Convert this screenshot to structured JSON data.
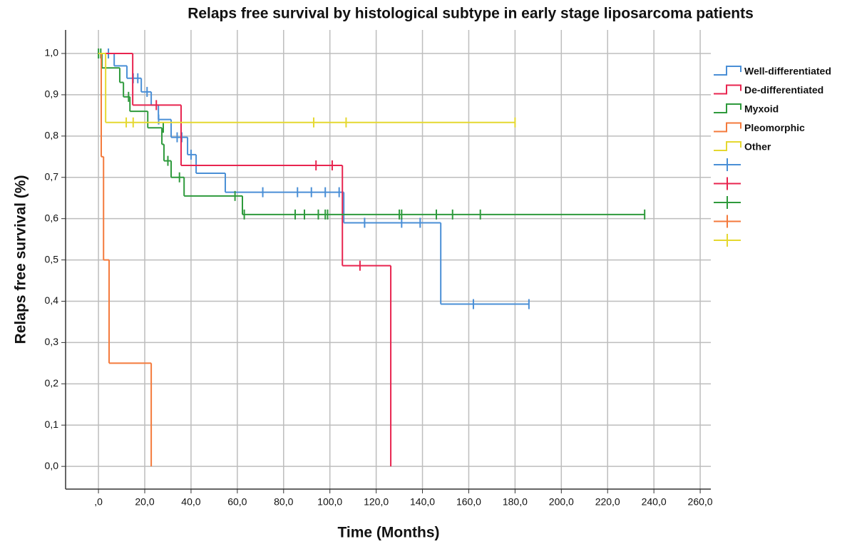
{
  "chart_data": {
    "type": "kaplan-meier",
    "title": "Relaps free survival by histological subtype in early stage liposarcoma patients",
    "xlabel": "Time (Months)",
    "ylabel": "Relaps free survival (%)",
    "xlim": [
      -14.2,
      264.6
    ],
    "ylim": [
      -0.055,
      1.057
    ],
    "xticks": [
      {
        "value": 0,
        "label": ",0"
      },
      {
        "value": 20,
        "label": "20,0"
      },
      {
        "value": 40,
        "label": "40,0"
      },
      {
        "value": 60,
        "label": "60,0"
      },
      {
        "value": 80,
        "label": "80,0"
      },
      {
        "value": 100,
        "label": "100,0"
      },
      {
        "value": 120,
        "label": "120,0"
      },
      {
        "value": 140,
        "label": "140,0"
      },
      {
        "value": 160,
        "label": "160,0"
      },
      {
        "value": 180,
        "label": "180,0"
      },
      {
        "value": 200,
        "label": "200,0"
      },
      {
        "value": 220,
        "label": "220,0"
      },
      {
        "value": 240,
        "label": "240,0"
      },
      {
        "value": 260,
        "label": "260,0"
      }
    ],
    "yticks": [
      {
        "value": 0,
        "label": "0,0"
      },
      {
        "value": 0.1,
        "label": "0,1"
      },
      {
        "value": 0.2,
        "label": "0,2"
      },
      {
        "value": 0.3,
        "label": "0,3"
      },
      {
        "value": 0.4,
        "label": "0,4"
      },
      {
        "value": 0.5,
        "label": "0,5"
      },
      {
        "value": 0.6,
        "label": "0,6"
      },
      {
        "value": 0.7,
        "label": "0,7"
      },
      {
        "value": 0.8,
        "label": "0,8"
      },
      {
        "value": 0.9,
        "label": "0,9"
      },
      {
        "value": 1,
        "label": "1,0"
      }
    ],
    "grid": true,
    "legend": "right",
    "series": [
      {
        "name": "Well-differentiated",
        "color": "#4a8fd6",
        "x": [
          0,
          6.8,
          12.3,
          18.5,
          22.8,
          25.9,
          31.4,
          38.5,
          42.2,
          54.8,
          106,
          147.9,
          186
        ],
        "values": [
          1,
          0.97,
          0.94,
          0.907,
          0.875,
          0.84,
          0.797,
          0.755,
          0.71,
          0.664,
          0.59,
          0.393,
          0.393
        ],
        "censored_x": [
          4.3,
          15,
          17,
          21,
          26,
          34,
          36,
          40,
          71,
          86,
          92,
          98,
          104,
          115,
          131,
          139,
          162,
          186
        ],
        "censored_values": [
          1,
          0.94,
          0.94,
          0.907,
          0.84,
          0.797,
          0.797,
          0.755,
          0.664,
          0.664,
          0.664,
          0.664,
          0.664,
          0.59,
          0.59,
          0.59,
          0.393,
          0.393
        ]
      },
      {
        "name": "De-differentiated",
        "color": "#e8244f",
        "x": [
          0,
          14.8,
          35.7,
          105.4,
          126.3
        ],
        "values": [
          1,
          0.875,
          0.729,
          0.486,
          0
        ],
        "censored_x": [
          25,
          94,
          101,
          113
        ],
        "censored_values": [
          0.875,
          0.729,
          0.729,
          0.486
        ]
      },
      {
        "name": "Myxoid",
        "color": "#2e9a3c",
        "x": [
          0,
          1.5,
          9.2,
          10.8,
          13.6,
          21.3,
          27.4,
          28.3,
          31.4,
          37,
          62.2,
          236
        ],
        "values": [
          1,
          0.965,
          0.93,
          0.895,
          0.86,
          0.82,
          0.78,
          0.74,
          0.7,
          0.655,
          0.61,
          0.61
        ],
        "censored_x": [
          0,
          1,
          13,
          28,
          30,
          35,
          59,
          63,
          85,
          89,
          95,
          98,
          99,
          130,
          131,
          146,
          153,
          165,
          236
        ],
        "censored_values": [
          1,
          1,
          0.895,
          0.82,
          0.74,
          0.7,
          0.655,
          0.61,
          0.61,
          0.61,
          0.61,
          0.61,
          0.61,
          0.61,
          0.61,
          0.61,
          0.61,
          0.61,
          0.61
        ]
      },
      {
        "name": "Pleomorphic",
        "color": "#f47a3c",
        "x": [
          0,
          1.2,
          2.2,
          4.6,
          22.8
        ],
        "values": [
          1,
          0.75,
          0.5,
          0.25,
          0
        ],
        "censored_x": [],
        "censored_values": []
      },
      {
        "name": "Other",
        "color": "#e5d830",
        "x": [
          0,
          3.1,
          180
        ],
        "values": [
          1,
          0.833,
          0.833
        ],
        "censored_x": [
          12,
          15,
          93,
          107,
          180
        ],
        "censored_values": [
          0.833,
          0.833,
          0.833,
          0.833,
          0.833
        ]
      }
    ]
  }
}
